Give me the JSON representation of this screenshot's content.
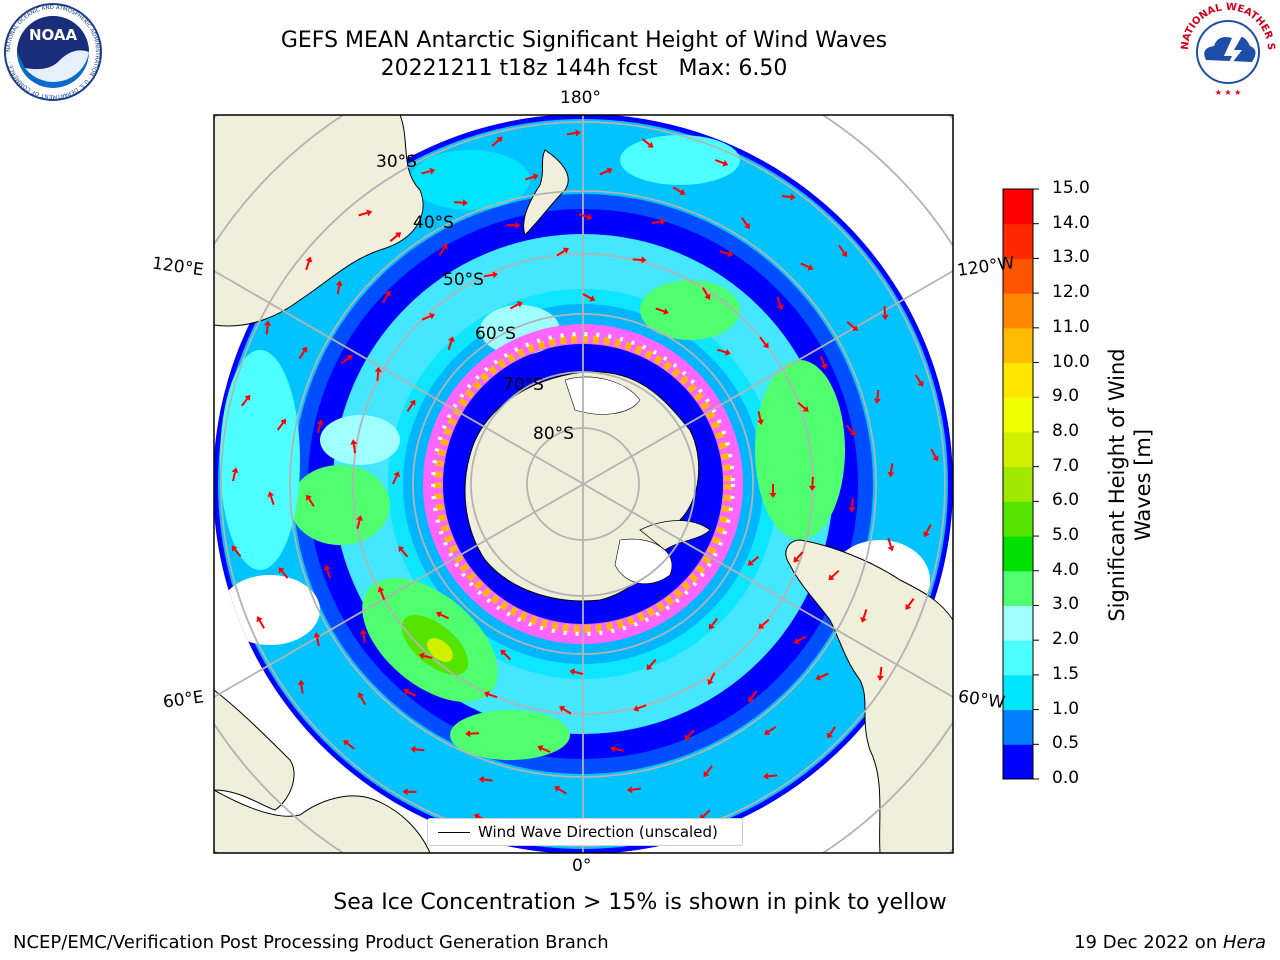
{
  "header": {
    "title_line1": "GEFS MEAN Antarctic Significant Height of Wind Waves",
    "title_line2": "20221211 t18z 144h fcst   Max: 6.50"
  },
  "logos": {
    "left": "NOAA",
    "left_ring": "NATIONAL OCEANIC AND ATMOSPHERIC ADMINISTRATION · U.S. DEPARTMENT OF COMMERCE ·",
    "right_ring": "NATIONAL WEATHER SERVICE"
  },
  "map": {
    "longitude_labels": {
      "top": "180°",
      "bottom": "0°",
      "upper_left": "120°E",
      "upper_right": "120°W",
      "lower_left": "60°E",
      "lower_right": "60°W"
    },
    "latitude_labels": [
      "30°S",
      "40°S",
      "50°S",
      "60°S",
      "70°S",
      "80°S"
    ],
    "legend": "Wind Wave Direction (unscaled)",
    "colors": {
      "ocean_low": "#0000ff",
      "land": "#efefdb",
      "sea_ice": "#ff66ff",
      "arrows": "#ff0000"
    }
  },
  "colorbar": {
    "title_line1": "Significant Height of Wind",
    "title_line2": "Waves [m]",
    "ticks": [
      "15.0",
      "14.0",
      "13.0",
      "12.0",
      "11.0",
      "10.0",
      "9.0",
      "8.0",
      "7.0",
      "6.0",
      "5.0",
      "4.0",
      "3.0",
      "2.0",
      "1.5",
      "1.0",
      "0.5",
      "0.0"
    ],
    "colors": [
      "#0000ff",
      "#0080ff",
      "#00e5ff",
      "#4dffff",
      "#a0ffff",
      "#50ff70",
      "#00e000",
      "#55e400",
      "#a0e800",
      "#d0f000",
      "#f0ff00",
      "#ffe600",
      "#ffbb00",
      "#ff8800",
      "#ff5500",
      "#ff2800",
      "#ff0000"
    ]
  },
  "caption": "Sea Ice Concentration > 15% is shown in pink to yellow",
  "footer": {
    "left": "NCEP/EMC/Verification Post Processing Product Generation Branch",
    "right_prefix": "19 Dec 2022 on ",
    "right_host": "Hera"
  }
}
